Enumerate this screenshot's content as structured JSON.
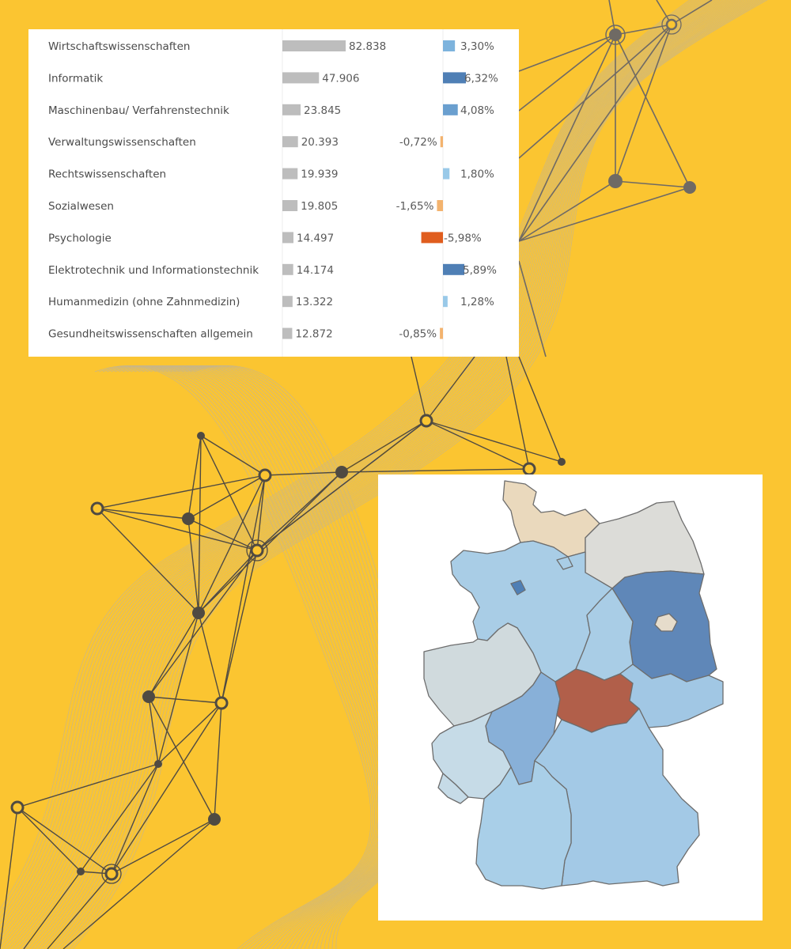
{
  "chart_data": {
    "type": "table",
    "title": "",
    "columns": [
      "",
      "",
      ""
    ],
    "rows": [
      {
        "label": "Wirtschaftswissenschaften",
        "value": 82838,
        "value_text": "82.838",
        "change": 3.3,
        "change_text": "3,30%"
      },
      {
        "label": "Informatik",
        "value": 47906,
        "value_text": "47.906",
        "change": 6.32,
        "change_text": "6,32%"
      },
      {
        "label": "Maschinenbau/ Verfahrenstechnik",
        "value": 23845,
        "value_text": "23.845",
        "change": 4.08,
        "change_text": "4,08%"
      },
      {
        "label": "Verwaltungswissenschaften",
        "value": 20393,
        "value_text": "20.393",
        "change": -0.72,
        "change_text": "-0,72%"
      },
      {
        "label": "Rechtswissenschaften",
        "value": 19939,
        "value_text": "19.939",
        "change": 1.8,
        "change_text": "1,80%"
      },
      {
        "label": "Sozialwesen",
        "value": 19805,
        "value_text": "19.805",
        "change": -1.65,
        "change_text": "-1,65%"
      },
      {
        "label": "Psychologie",
        "value": 14497,
        "value_text": "14.497",
        "change": -5.98,
        "change_text": "-5,98%"
      },
      {
        "label": "Elektrotechnik und Informationstechnik",
        "value": 14174,
        "value_text": "14.174",
        "change": 5.89,
        "change_text": "5,89%"
      },
      {
        "label": "Humanmedizin (ohne Zahnmedizin)",
        "value": 13322,
        "value_text": "13.322",
        "change": 1.28,
        "change_text": "1,28%"
      },
      {
        "label": "Gesundheitswissenschaften allgemein",
        "value": 12872,
        "value_text": "12.872",
        "change": -0.85,
        "change_text": "-0,85%"
      }
    ],
    "value_bar_color": "#bdbdbd",
    "change_scale_max": 7
  },
  "map": {
    "type": "choropleth",
    "regions": [
      {
        "id": "schleswig-holstein",
        "color": "#ead9bd"
      },
      {
        "id": "mecklenburg-vorpommern",
        "color": "#dcdcd8"
      },
      {
        "id": "niedersachsen",
        "color": "#a9cde6"
      },
      {
        "id": "brandenburg",
        "color": "#5f87b8"
      },
      {
        "id": "berlin",
        "color": "#e6dccb"
      },
      {
        "id": "sachsen-anhalt",
        "color": "#a9cde6"
      },
      {
        "id": "nordrhein-westfalen",
        "color": "#d0dadd"
      },
      {
        "id": "hessen",
        "color": "#88b0d8"
      },
      {
        "id": "thueringen",
        "color": "#b15f4a"
      },
      {
        "id": "sachsen",
        "color": "#a1c7e4"
      },
      {
        "id": "rheinland-pfalz",
        "color": "#c6dbe7"
      },
      {
        "id": "saarland",
        "color": "#c6dbe7"
      },
      {
        "id": "bayern",
        "color": "#a3c9e6"
      },
      {
        "id": "baden-wuerttemberg",
        "color": "#a9cfe8"
      },
      {
        "id": "hamburg",
        "color": "#a9cde6"
      },
      {
        "id": "bremen",
        "color": "#a9cde6"
      }
    ]
  }
}
